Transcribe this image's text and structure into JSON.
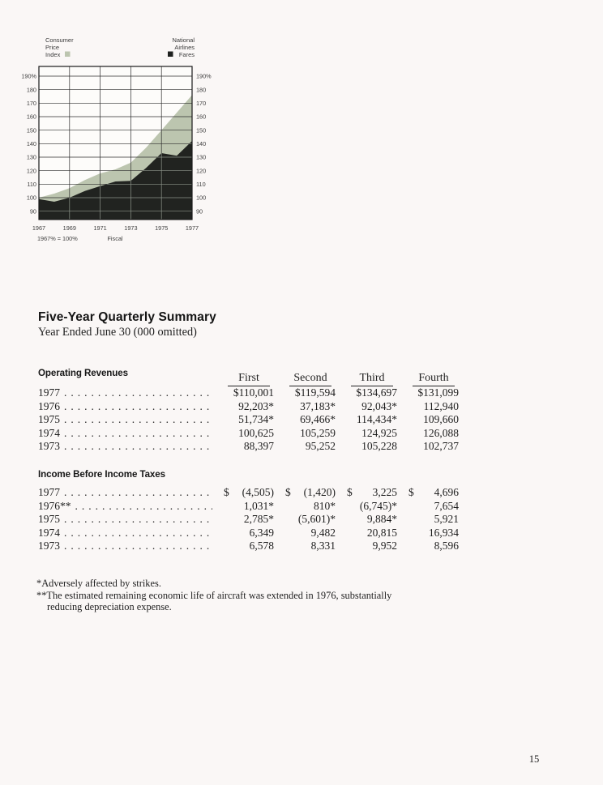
{
  "page": {
    "number": "15"
  },
  "chart": {
    "legend_left": {
      "lines": [
        "Consumer",
        "Price",
        "Index"
      ],
      "swatch_color": "#bcc5af"
    },
    "legend_right": {
      "lines": [
        "National",
        "Airlines",
        "Fares"
      ],
      "swatch_color": "#1f211f"
    },
    "left_axis_labels": [
      "190%",
      "180",
      "170",
      "160",
      "150",
      "140",
      "130",
      "120",
      "110",
      "100",
      "90"
    ],
    "right_axis_labels": [
      "190%",
      "180",
      "170",
      "160",
      "150",
      "140",
      "130",
      "120",
      "110",
      "100",
      "90"
    ],
    "x_labels": [
      "1967",
      "1969",
      "1971",
      "1973",
      "1975",
      "1977"
    ],
    "base_note": "1967% = 100%",
    "x_title": "Fiscal",
    "label_color": "#3e3e3e"
  },
  "chart_data": {
    "type": "area",
    "x": [
      1967,
      1968,
      1969,
      1970,
      1971,
      1972,
      1973,
      1974,
      1975,
      1976,
      1977
    ],
    "series": [
      {
        "name": "Consumer Price Index",
        "color": "#bcc5af",
        "values": [
          100,
          103,
          107,
          113,
          118,
          121,
          126,
          137,
          150,
          163,
          176
        ]
      },
      {
        "name": "National Airlines Fares",
        "color": "#212320",
        "values": [
          99,
          97,
          100,
          105,
          108.5,
          112,
          112.5,
          122,
          133,
          131,
          142
        ]
      }
    ],
    "ylim": [
      90,
      190
    ],
    "ytick_step": 10,
    "x_gridlines": [
      1969,
      1971,
      1973,
      1975
    ],
    "grid": true,
    "legend_position": "top",
    "plot_bg": "#fdfcfa",
    "grid_color_on_light": "#2c2c2c",
    "grid_color_on_dark": "#8d948a"
  },
  "summary": {
    "title": "Five-Year Quarterly Summary",
    "subtitle": "Year Ended June 30 (000 omitted)",
    "columns": [
      "First",
      "Second",
      "Third",
      "Fourth"
    ],
    "sections": [
      {
        "heading": "Operating Revenues",
        "rows": [
          {
            "year": "1977",
            "cells": [
              "$110,001",
              "$119,594",
              "$134,697",
              "$131,099"
            ]
          },
          {
            "year": "1976",
            "cells": [
              "92,203*",
              "37,183*",
              "92,043*",
              "112,940"
            ]
          },
          {
            "year": "1975",
            "cells": [
              "51,734*",
              "69,466*",
              "114,434*",
              "109,660"
            ]
          },
          {
            "year": "1974",
            "cells": [
              "100,625",
              "105,259",
              "124,925",
              "126,088"
            ]
          },
          {
            "year": "1973",
            "cells": [
              "88,397",
              "95,252",
              "105,228",
              "102,737"
            ]
          }
        ]
      },
      {
        "heading": "Income Before Income Taxes",
        "rows": [
          {
            "year": "1977",
            "cells": [
              "$ (4,505)",
              "$ (1,420)",
              "$ 3,225",
              "$ 4,696"
            ]
          },
          {
            "year": "1976**",
            "cells": [
              "1,031*",
              "810*",
              "(6,745)*",
              "7,654"
            ]
          },
          {
            "year": "1975",
            "cells": [
              "2,785*",
              "(5,601)*",
              "9,884*",
              "5,921"
            ]
          },
          {
            "year": "1974",
            "cells": [
              "6,349",
              "9,482",
              "20,815",
              "16,934"
            ]
          },
          {
            "year": "1973",
            "cells": [
              "6,578",
              "8,331",
              "9,952",
              "8,596"
            ]
          }
        ]
      }
    ],
    "footnotes": [
      {
        "marker": "*",
        "text": "Adversely affected by strikes."
      },
      {
        "marker": "**",
        "text": "The estimated remaining economic life of aircraft was extended in 1976, substantially reducing depreciation expense."
      }
    ]
  }
}
